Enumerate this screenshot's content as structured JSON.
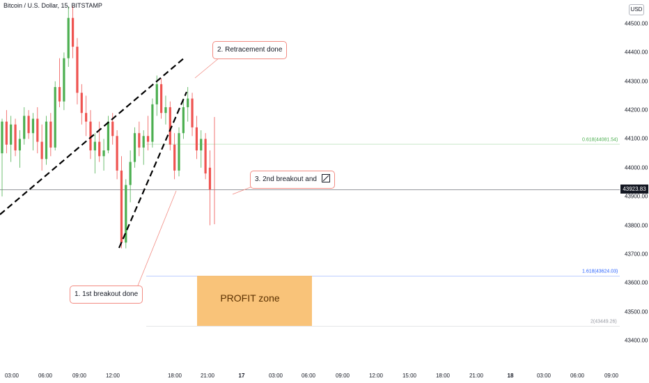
{
  "header": {
    "title": "Bitcoin / U.S. Dollar, 15, BITSTAMP",
    "currency": "USD"
  },
  "price_axis": {
    "ticks": [
      "44500.00",
      "44400.00",
      "44300.00",
      "44200.00",
      "44100.00",
      "44000.00",
      "43900.00",
      "43800.00",
      "43700.00",
      "43600.00",
      "43500.00",
      "43400.00"
    ],
    "current_price": "43923.83"
  },
  "time_axis": {
    "ticks": [
      {
        "label": "03:00",
        "bold": false
      },
      {
        "label": "06:00",
        "bold": false
      },
      {
        "label": "09:00",
        "bold": false
      },
      {
        "label": "12:00",
        "bold": false
      },
      {
        "label": "18:00",
        "bold": false
      },
      {
        "label": "21:00",
        "bold": false
      },
      {
        "label": "17",
        "bold": true
      },
      {
        "label": "03:00",
        "bold": false
      },
      {
        "label": "06:00",
        "bold": false
      },
      {
        "label": "09:00",
        "bold": false
      },
      {
        "label": "12:00",
        "bold": false
      },
      {
        "label": "15:00",
        "bold": false
      },
      {
        "label": "18:00",
        "bold": false
      },
      {
        "label": "21:00",
        "bold": false
      },
      {
        "label": "18",
        "bold": true
      },
      {
        "label": "03:00",
        "bold": false
      },
      {
        "label": "06:00",
        "bold": false
      },
      {
        "label": "09:00",
        "bold": false
      }
    ]
  },
  "fib_levels": [
    {
      "text": "0.618(44081.54)",
      "color": "#4caf50"
    },
    {
      "text": "1.618(43624.03)",
      "color": "#2962ff"
    },
    {
      "text": "2(43449.26)",
      "color": "#9598a1"
    }
  ],
  "annotations": {
    "breakout1": "1. 1st breakout done",
    "retracement": "2. Retracement done",
    "breakout2": "3. 2nd breakout and",
    "profit_zone": "PROFIT zone"
  },
  "colors": {
    "up": "#26a69a",
    "up_fill": "#4caf50",
    "down": "#ef5350",
    "profit_zone": "#f8bc6a",
    "price_line": "#131722"
  },
  "chart_data": {
    "type": "candlestick",
    "title": "Bitcoin / U.S. Dollar, 15, BITSTAMP",
    "ylabel": "USD",
    "ylim": [
      43330,
      44560
    ],
    "interval": "15m",
    "last_price": 43923.83,
    "fib_levels": [
      {
        "ratio": 0.618,
        "price": 44081.54
      },
      {
        "ratio": 1.618,
        "price": 43624.03
      },
      {
        "ratio": 2,
        "price": 43449.26
      }
    ],
    "candles": [
      {
        "o": 44050,
        "h": 44170,
        "l": 43900,
        "c": 44160
      },
      {
        "o": 44160,
        "h": 44200,
        "l": 44050,
        "c": 44080
      },
      {
        "o": 44080,
        "h": 44180,
        "l": 44020,
        "c": 44150
      },
      {
        "o": 44150,
        "h": 44170,
        "l": 44040,
        "c": 44060
      },
      {
        "o": 44060,
        "h": 44130,
        "l": 44000,
        "c": 44100
      },
      {
        "o": 44100,
        "h": 44210,
        "l": 44080,
        "c": 44180
      },
      {
        "o": 44180,
        "h": 44200,
        "l": 44100,
        "c": 44120
      },
      {
        "o": 44120,
        "h": 44190,
        "l": 44060,
        "c": 44170
      },
      {
        "o": 44170,
        "h": 44210,
        "l": 44050,
        "c": 44090
      },
      {
        "o": 44090,
        "h": 44150,
        "l": 43990,
        "c": 44030
      },
      {
        "o": 44030,
        "h": 44180,
        "l": 44010,
        "c": 44160
      },
      {
        "o": 44160,
        "h": 44190,
        "l": 44040,
        "c": 44070
      },
      {
        "o": 44070,
        "h": 44300,
        "l": 44060,
        "c": 44280
      },
      {
        "o": 44280,
        "h": 44380,
        "l": 44210,
        "c": 44230
      },
      {
        "o": 44230,
        "h": 44400,
        "l": 44200,
        "c": 44380
      },
      {
        "o": 44380,
        "h": 44560,
        "l": 44350,
        "c": 44520
      },
      {
        "o": 44520,
        "h": 44560,
        "l": 44380,
        "c": 44420
      },
      {
        "o": 44420,
        "h": 44450,
        "l": 44220,
        "c": 44260
      },
      {
        "o": 44260,
        "h": 44290,
        "l": 44150,
        "c": 44190
      },
      {
        "o": 44190,
        "h": 44250,
        "l": 44110,
        "c": 44160
      },
      {
        "o": 44160,
        "h": 44200,
        "l": 44030,
        "c": 44060
      },
      {
        "o": 44060,
        "h": 44120,
        "l": 43980,
        "c": 44090
      },
      {
        "o": 44090,
        "h": 44160,
        "l": 44020,
        "c": 44040
      },
      {
        "o": 44040,
        "h": 44100,
        "l": 43990,
        "c": 44060
      },
      {
        "o": 44060,
        "h": 44180,
        "l": 44050,
        "c": 44160
      },
      {
        "o": 44160,
        "h": 44190,
        "l": 44080,
        "c": 44110
      },
      {
        "o": 44110,
        "h": 44130,
        "l": 43960,
        "c": 43990
      },
      {
        "o": 43990,
        "h": 44040,
        "l": 43720,
        "c": 43740
      },
      {
        "o": 43740,
        "h": 43960,
        "l": 43720,
        "c": 43940
      },
      {
        "o": 43940,
        "h": 44060,
        "l": 43880,
        "c": 44020
      },
      {
        "o": 44020,
        "h": 44140,
        "l": 44000,
        "c": 44120
      },
      {
        "o": 44120,
        "h": 44160,
        "l": 44040,
        "c": 44070
      },
      {
        "o": 44070,
        "h": 44130,
        "l": 44010,
        "c": 44110
      },
      {
        "o": 44110,
        "h": 44180,
        "l": 44060,
        "c": 44090
      },
      {
        "o": 44090,
        "h": 44240,
        "l": 44070,
        "c": 44220
      },
      {
        "o": 44220,
        "h": 44320,
        "l": 44180,
        "c": 44290
      },
      {
        "o": 44290,
        "h": 44310,
        "l": 44170,
        "c": 44190
      },
      {
        "o": 44190,
        "h": 44250,
        "l": 44150,
        "c": 44210
      },
      {
        "o": 44210,
        "h": 44230,
        "l": 44060,
        "c": 44080
      },
      {
        "o": 44080,
        "h": 44120,
        "l": 43960,
        "c": 43990
      },
      {
        "o": 43990,
        "h": 44140,
        "l": 43970,
        "c": 44120
      },
      {
        "o": 44120,
        "h": 44240,
        "l": 44100,
        "c": 44210
      },
      {
        "o": 44210,
        "h": 44280,
        "l": 44160,
        "c": 44240
      },
      {
        "o": 44240,
        "h": 44260,
        "l": 44110,
        "c": 44140
      },
      {
        "o": 44140,
        "h": 44180,
        "l": 44030,
        "c": 44060
      },
      {
        "o": 44060,
        "h": 44130,
        "l": 44000,
        "c": 44100
      },
      {
        "o": 44100,
        "h": 44120,
        "l": 43960,
        "c": 43980
      },
      {
        "o": 44000,
        "h": 44060,
        "l": 43800,
        "c": 43923.83
      }
    ]
  }
}
